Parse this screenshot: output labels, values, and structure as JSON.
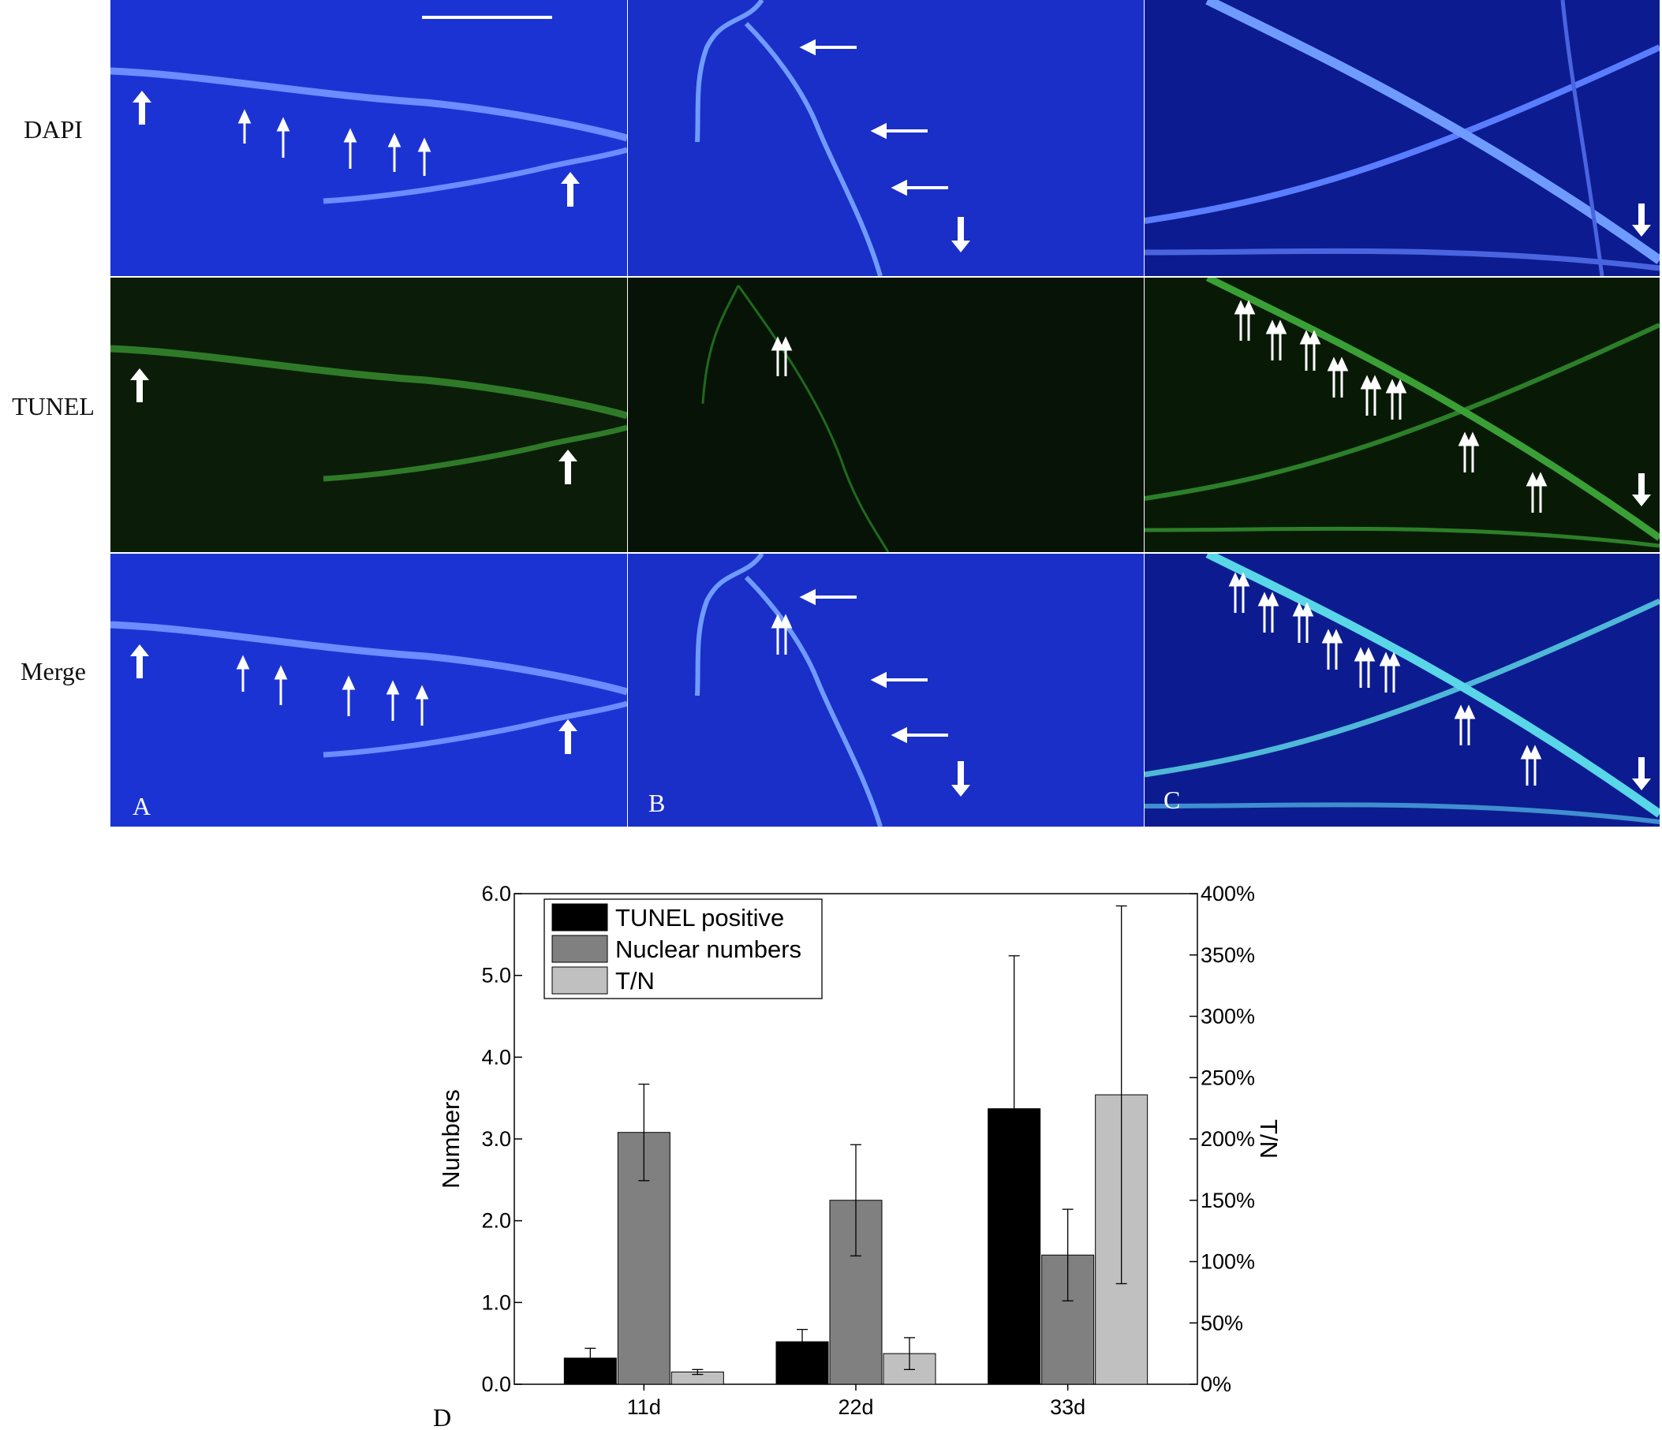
{
  "figure": {
    "row_labels": [
      "DAPI",
      "TUNEL",
      "Merge"
    ],
    "panel_letters": [
      "A",
      "B",
      "C"
    ],
    "chart_letter": "D",
    "colors": {
      "dapi_bg": "#1a2fcf",
      "dapi_bg_dark": "#0a1a8a",
      "tunel_bg": "#0b1f08",
      "hypha_blue": "#6f9bff",
      "hypha_green": "#2f8f2a",
      "hypha_cyan": "#59d6e8",
      "arrow": "#ffffff"
    }
  },
  "chart_data": {
    "type": "bar",
    "categories": [
      "11d",
      "22d",
      "33d"
    ],
    "series": [
      {
        "name": "TUNEL positive",
        "axis": "left",
        "values": [
          0.32,
          0.52,
          3.37
        ],
        "errors": [
          0.12,
          0.15,
          1.87
        ],
        "color": "#000000"
      },
      {
        "name": "Nuclear numbers",
        "axis": "left",
        "values": [
          3.08,
          2.25,
          1.58
        ],
        "errors": [
          0.59,
          0.68,
          0.56
        ],
        "color": "#808080"
      },
      {
        "name": "T/N",
        "axis": "right",
        "values": [
          10,
          25,
          236
        ],
        "errors": [
          2,
          13,
          154
        ],
        "color": "#c0c0c0"
      }
    ],
    "ylabel": "Numbers",
    "y2label": "T/N",
    "ylim": [
      0,
      6
    ],
    "y2lim": [
      0,
      400
    ],
    "yticks": [
      "0.0",
      "1.0",
      "2.0",
      "3.0",
      "4.0",
      "5.0",
      "6.0"
    ],
    "y2ticks": [
      "0%",
      "50%",
      "100%",
      "150%",
      "200%",
      "250%",
      "300%",
      "350%",
      "400%"
    ],
    "legend_position": "top-left",
    "grid": false
  }
}
